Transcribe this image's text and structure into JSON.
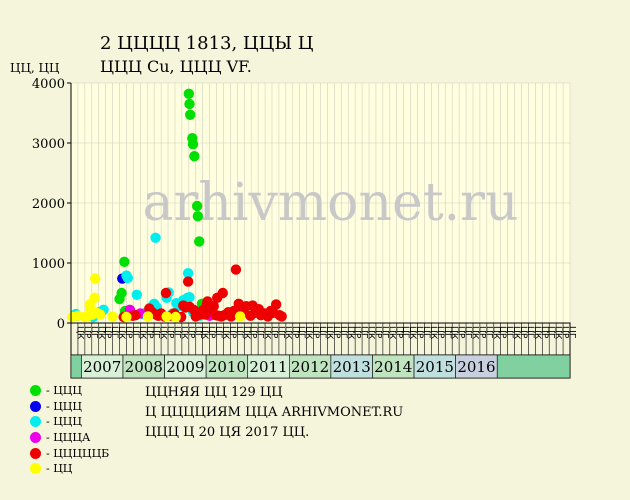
{
  "title_line1": "2 ЦЦЦЦ 1813, ЦЦЫ Ц",
  "title_line2": "ЦЦЦ Cu, ЦЦЦ VF.",
  "y_unit": "ЦЦ, ЦЦ",
  "watermark": "arhivmonet.ru",
  "info": [
    "ЦЦНЯЯ ЦЦ 129 ЦЦ",
    "Ц ЦЦЦЦИЯМ ЦЦА ARHIVMONET.RU",
    "ЦЦЦ Ц 20 ЦЯ 2017 ЦЦ."
  ],
  "legend": [
    {
      "label": "- ЦЦЦ",
      "color": "#00e000"
    },
    {
      "label": "- ЦЦЦ",
      "color": "#0000ee"
    },
    {
      "label": "- ЦЦЦ",
      "color": "#00eeee"
    },
    {
      "label": "- ЦЦЦА",
      "color": "#ee00ee"
    },
    {
      "label": "- ЦЦЦЦЦБ",
      "color": "#ee0000"
    },
    {
      "label": "- ЦЦ",
      "color": "#ffff00"
    }
  ],
  "colors": {
    "background": "#f5f5dc",
    "plot_bg": "#ffffe0",
    "grid": "#d0d0c0",
    "axis": "#000000",
    "watermark": "#c8c8c8",
    "year_band_a": "#d8f0d8",
    "year_band_b": "#c0e4c0",
    "year_band_alt": "#c0e0e0",
    "year_2016": "#c8d0e0",
    "year_left_band": "#80d0a0"
  },
  "chart_data": {
    "type": "scatter",
    "ylim": [
      0,
      4000
    ],
    "yticks": [
      0,
      1000,
      2000,
      3000,
      4000
    ],
    "grid": true,
    "legend_position": "bottom-left",
    "half_labels": [
      "ЦК",
      "ЦР",
      "ЦГ",
      "ЦК",
      "ЦР",
      "ЦГ",
      "ЦК",
      "ЦР",
      "ЦГ",
      "ЦК",
      "ЦР",
      "ЦГ",
      "ЦК",
      "ЦР",
      "ЦГ",
      "ЦК",
      "ЦР",
      "ЦГ",
      "ЦК",
      "ЦР",
      "ЦГ",
      "ЦК",
      "ЦР",
      "ЦГ",
      "ЦК",
      "ЦР",
      "ЦГ",
      "ЦК",
      "ЦР",
      "ЦГ",
      "ЦК",
      "ЦР",
      "ЦГ",
      "ЦК",
      "ЦР",
      "ЦГ",
      "ЦК",
      "ЦР",
      "ЦГ",
      "ЦК",
      "ЦР",
      "ЦГ",
      "ЦК",
      "ЦР",
      "ЦГ",
      "ЦК",
      "ЦР",
      "ЦГ",
      "ЦК",
      "ЦР",
      "ЦГ",
      "ЦК",
      "ЦР",
      "ЦГ",
      "ЦК",
      "ЦР",
      "ЦГ",
      "ЦК",
      "ЦР",
      "ЦГ",
      "ЦК",
      "ЦР",
      "ЦГ",
      "ЦК",
      "ЦР",
      "ЦГ",
      "ЦК",
      "ЦР",
      "ЦГ",
      "ЦК",
      "ЦР",
      "ЦГ"
    ],
    "years": [
      "2007",
      "2008",
      "2009",
      "2010",
      "2011",
      "2012",
      "2013",
      "2014",
      "2015",
      "2016"
    ],
    "series": [
      {
        "name": "- ЦЦЦ",
        "color": "#00e000",
        "points": [
          [
            7.0,
            400
          ],
          [
            7.3,
            500
          ],
          [
            7.7,
            1020
          ],
          [
            7.8,
            200
          ],
          [
            17.0,
            3820
          ],
          [
            17.1,
            3650
          ],
          [
            17.2,
            3470
          ],
          [
            17.5,
            3080
          ],
          [
            17.6,
            2980
          ],
          [
            17.8,
            2780
          ],
          [
            18.2,
            1950
          ],
          [
            18.3,
            1780
          ],
          [
            18.5,
            1360
          ],
          [
            18.9,
            320
          ],
          [
            19.3,
            290
          ]
        ]
      },
      {
        "name": "- ЦЦЦ",
        "color": "#0000ee",
        "points": [
          [
            7.4,
            740
          ]
        ]
      },
      {
        "name": "- ЦЦЦ",
        "color": "#00eeee",
        "points": [
          [
            0.7,
            150
          ],
          [
            0.9,
            120
          ],
          [
            3.2,
            100
          ],
          [
            4.0,
            180
          ],
          [
            4.7,
            220
          ],
          [
            8.0,
            790
          ],
          [
            8.2,
            750
          ],
          [
            9.5,
            470
          ],
          [
            10.3,
            150
          ],
          [
            11.0,
            190
          ],
          [
            11.5,
            220
          ],
          [
            11.8,
            290
          ],
          [
            12.0,
            320
          ],
          [
            12.2,
            1420
          ],
          [
            12.4,
            260
          ],
          [
            13.8,
            420
          ],
          [
            14.1,
            510
          ],
          [
            14.7,
            160
          ],
          [
            15.2,
            330
          ],
          [
            15.5,
            280
          ],
          [
            16.2,
            380
          ],
          [
            16.5,
            260
          ],
          [
            16.8,
            420
          ],
          [
            16.9,
            830
          ],
          [
            17.1,
            430
          ],
          [
            17.6,
            180
          ],
          [
            18.1,
            190
          ],
          [
            18.6,
            120
          ]
        ]
      },
      {
        "name": "- ЦЦЦА",
        "color": "#ee00ee",
        "points": [
          [
            8.5,
            220
          ],
          [
            10.0,
            160
          ],
          [
            20.0,
            120
          ]
        ]
      },
      {
        "name": "- ЦЦЦЦЦБ",
        "color": "#ee0000",
        "points": [
          [
            7.6,
            100
          ],
          [
            8.9,
            120
          ],
          [
            9.3,
            130
          ],
          [
            11.3,
            240
          ],
          [
            11.7,
            180
          ],
          [
            12.3,
            140
          ],
          [
            12.6,
            120
          ],
          [
            13.0,
            160
          ],
          [
            13.5,
            110
          ],
          [
            13.7,
            500
          ],
          [
            14.3,
            120
          ],
          [
            14.9,
            160
          ],
          [
            15.9,
            100
          ],
          [
            16.2,
            290
          ],
          [
            16.5,
            260
          ],
          [
            16.9,
            690
          ],
          [
            17.1,
            270
          ],
          [
            17.7,
            220
          ],
          [
            18.0,
            110
          ],
          [
            18.6,
            140
          ],
          [
            19.0,
            210
          ],
          [
            19.4,
            140
          ],
          [
            19.6,
            310
          ],
          [
            19.7,
            360
          ],
          [
            20.2,
            230
          ],
          [
            20.6,
            280
          ],
          [
            20.9,
            130
          ],
          [
            21.1,
            420
          ],
          [
            21.3,
            120
          ],
          [
            21.7,
            110
          ],
          [
            21.9,
            500
          ],
          [
            22.1,
            130
          ],
          [
            22.7,
            180
          ],
          [
            23.1,
            110
          ],
          [
            23.5,
            200
          ],
          [
            23.8,
            890
          ],
          [
            24.2,
            320
          ],
          [
            24.6,
            230
          ],
          [
            24.9,
            170
          ],
          [
            25.3,
            280
          ],
          [
            25.9,
            120
          ],
          [
            26.2,
            290
          ],
          [
            26.6,
            170
          ],
          [
            27.1,
            230
          ],
          [
            27.4,
            130
          ],
          [
            27.9,
            160
          ],
          [
            28.4,
            110
          ],
          [
            28.8,
            200
          ],
          [
            29.2,
            170
          ],
          [
            29.6,
            310
          ],
          [
            30.1,
            130
          ],
          [
            30.4,
            110
          ]
        ]
      },
      {
        "name": "- ЦЦ",
        "color": "#ffff00",
        "points": [
          [
            0.2,
            100
          ],
          [
            1.0,
            120
          ],
          [
            2.0,
            100
          ],
          [
            2.4,
            110
          ],
          [
            2.7,
            310
          ],
          [
            2.8,
            230
          ],
          [
            3.1,
            140
          ],
          [
            3.4,
            420
          ],
          [
            3.5,
            740
          ],
          [
            3.7,
            170
          ],
          [
            4.2,
            140
          ],
          [
            6.0,
            110
          ],
          [
            8.0,
            100
          ],
          [
            11.1,
            110
          ],
          [
            13.8,
            110
          ],
          [
            15.1,
            100
          ],
          [
            24.4,
            110
          ]
        ]
      }
    ]
  }
}
